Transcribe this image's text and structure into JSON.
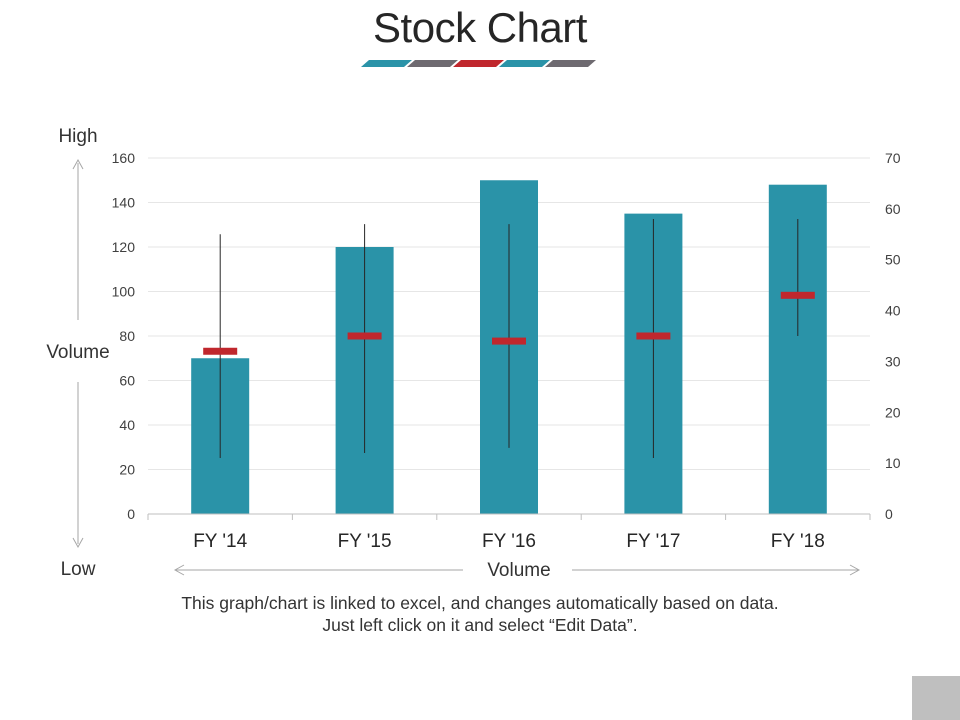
{
  "page": {
    "title": "Stock Chart",
    "caption": "This graph/chart is linked to excel, and changes automatically based on data. Just left click on it and select “Edit Data”.",
    "decor_colors": [
      "#2a93a8",
      "#6e6a70",
      "#c0272d",
      "#2a93a8",
      "#6e6a70"
    ]
  },
  "chart_data": {
    "type": "bar",
    "subtype": "stock-volume-high-low-close",
    "categories": [
      "FY '14",
      "FY '15",
      "FY '16",
      "FY '17",
      "FY '18"
    ],
    "volume": [
      70,
      120,
      150,
      135,
      148
    ],
    "high": [
      55,
      57,
      57,
      58,
      58
    ],
    "low": [
      11,
      12,
      13,
      11,
      35
    ],
    "close": [
      32,
      35,
      34,
      35,
      43
    ],
    "left_axis": {
      "min": 0,
      "max": 160,
      "step": 20,
      "ticks": [
        "0",
        "20",
        "40",
        "60",
        "80",
        "100",
        "120",
        "140",
        "160"
      ]
    },
    "right_axis": {
      "min": 0,
      "max": 70,
      "step": 10,
      "ticks": [
        "0",
        "10",
        "20",
        "30",
        "40",
        "50",
        "60",
        "70"
      ]
    },
    "labels": {
      "high": "High",
      "low": "Low",
      "y_volume": "Volume",
      "x_volume": "Volume"
    },
    "grid": true,
    "colors": {
      "bar": "#2a93a8",
      "close_marker": "#c0272d",
      "whisker": "#262626",
      "grid": "#e6e6e6",
      "axis": "#bfbfbf",
      "arrow": "#a6a6a6"
    }
  }
}
